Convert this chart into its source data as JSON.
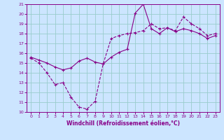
{
  "title": "",
  "xlabel": "Windchill (Refroidissement éolien,°C)",
  "bg_color": "#cce5ff",
  "grid_color": "#99cccc",
  "line_color": "#880088",
  "xlim": [
    -0.5,
    23.5
  ],
  "ylim": [
    10,
    21
  ],
  "xticks": [
    0,
    1,
    2,
    3,
    4,
    5,
    6,
    7,
    8,
    9,
    10,
    11,
    12,
    13,
    14,
    15,
    16,
    17,
    18,
    19,
    20,
    21,
    22,
    23
  ],
  "yticks": [
    10,
    11,
    12,
    13,
    14,
    15,
    16,
    17,
    18,
    19,
    20,
    21
  ],
  "curve1_x": [
    0,
    1,
    2,
    3,
    4,
    5,
    6,
    7,
    8,
    9,
    10,
    11,
    12,
    13,
    14,
    15,
    16,
    17,
    18,
    19,
    20,
    21,
    22,
    23
  ],
  "curve1_y": [
    15.5,
    15.0,
    14.0,
    12.8,
    13.0,
    11.5,
    10.5,
    10.3,
    11.1,
    14.9,
    17.5,
    17.8,
    18.0,
    18.1,
    18.3,
    19.0,
    18.5,
    18.6,
    18.3,
    19.7,
    19.0,
    18.5,
    17.8,
    18.0
  ],
  "curve2_x": [
    0,
    1,
    2,
    3,
    4,
    5,
    6,
    7,
    8,
    9,
    10,
    11,
    12,
    13,
    14,
    15,
    16,
    17,
    18,
    19,
    20,
    21,
    22,
    23
  ],
  "curve2_y": [
    15.6,
    15.3,
    15.0,
    14.6,
    14.3,
    14.5,
    15.2,
    15.5,
    15.1,
    14.9,
    15.6,
    16.1,
    16.4,
    20.1,
    21.0,
    18.5,
    18.0,
    18.6,
    18.2,
    18.5,
    18.3,
    18.0,
    17.5,
    17.8
  ]
}
